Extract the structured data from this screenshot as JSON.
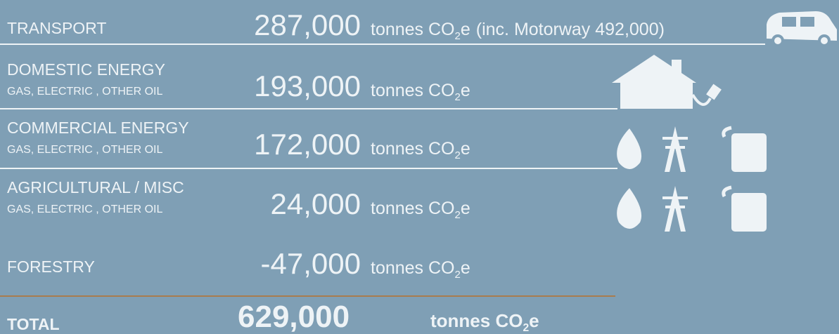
{
  "unit": {
    "text": "tonnes CO",
    "sub": "2",
    "end": "e"
  },
  "rows": [
    {
      "label": "TRANSPORT",
      "value": "287,000",
      "note": "(inc. Motorway 492,000)"
    },
    {
      "label": "DOMESTIC ENERGY",
      "sublabel": "GAS, ELECTRIC , OTHER OIL",
      "value": "193,000"
    },
    {
      "label": "COMMERCIAL ENERGY",
      "sublabel": "GAS, ELECTRIC , OTHER OIL",
      "value": "172,000"
    },
    {
      "label": "AGRICULTURAL / MISC",
      "sublabel": "GAS, ELECTRIC , OTHER OIL",
      "value": "24,000"
    },
    {
      "label": "FORESTRY",
      "value": "-47,000"
    }
  ],
  "total": {
    "label": "TOTAL",
    "value": "629,000"
  }
}
